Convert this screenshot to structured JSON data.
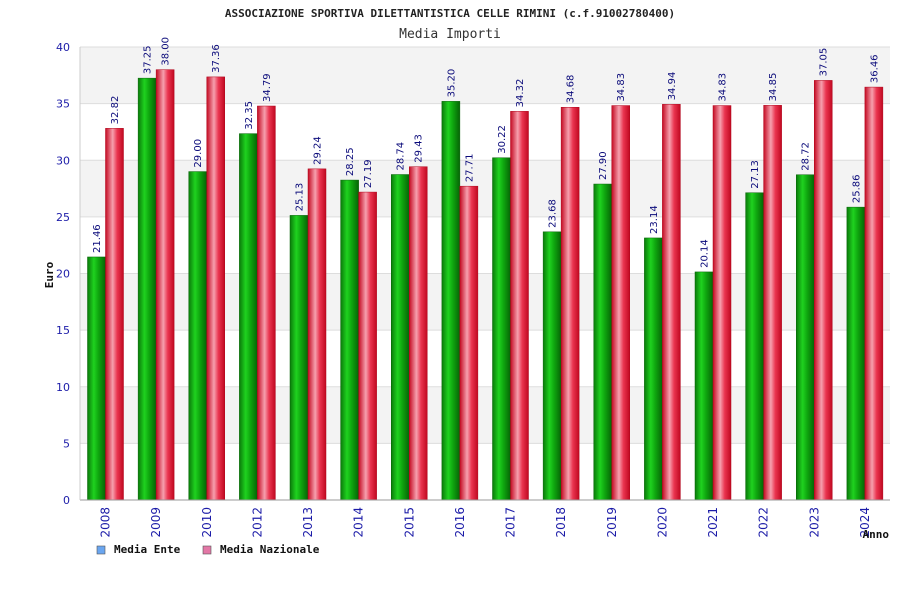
{
  "chart_data": {
    "type": "bar",
    "title": "ASSOCIAZIONE SPORTIVA DILETTANTISTICA CELLE RIMINI (c.f.91002780400)",
    "subtitle": "Media Importi",
    "xlabel": "Anno",
    "ylabel": "Euro",
    "ylim": [
      0,
      40
    ],
    "yticks": [
      "0",
      "5",
      "10",
      "15",
      "20",
      "25",
      "30",
      "35",
      "40"
    ],
    "grid": true,
    "legend_position": "bottom-left",
    "categories": [
      "2008",
      "2009",
      "2010",
      "2012",
      "2013",
      "2014",
      "2015",
      "2016",
      "2017",
      "2018",
      "2019",
      "2020",
      "2021",
      "2022",
      "2023",
      "2024"
    ],
    "series": [
      {
        "name": "Media Ente",
        "color": "#12b312",
        "legend_color": "#6aa6f0",
        "values": [
          21.46,
          37.25,
          29.0,
          32.35,
          25.13,
          28.25,
          28.74,
          35.2,
          30.22,
          23.68,
          27.9,
          23.14,
          20.14,
          27.13,
          28.72,
          25.86
        ],
        "labels": [
          "21.46",
          "37.25",
          "29.00",
          "32.35",
          "25.13",
          "28.25",
          "28.74",
          "35.20",
          "30.22",
          "23.68",
          "27.90",
          "23.14",
          "20.14",
          "27.13",
          "28.72",
          "25.86"
        ]
      },
      {
        "name": "Media Nazionale",
        "color": "#e8112d",
        "legend_color": "#e377a6",
        "values": [
          32.82,
          38.0,
          37.36,
          34.79,
          29.24,
          27.19,
          29.43,
          27.71,
          34.32,
          34.68,
          34.83,
          34.94,
          34.83,
          34.85,
          37.05,
          36.46
        ],
        "labels": [
          "32.82",
          "38.00",
          "37.36",
          "34.79",
          "29.24",
          "27.19",
          "29.43",
          "27.71",
          "34.32",
          "34.68",
          "34.83",
          "34.94",
          "34.83",
          "34.85",
          "37.05",
          "36.46"
        ]
      }
    ]
  }
}
